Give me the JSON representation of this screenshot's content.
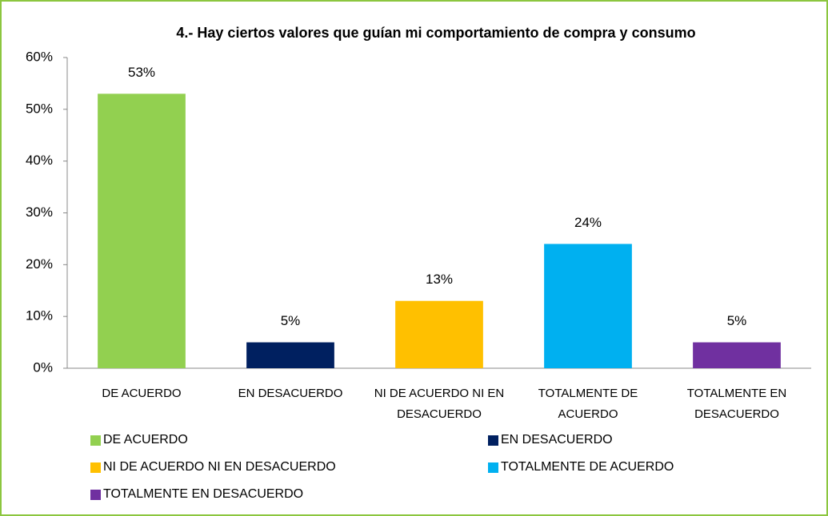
{
  "chart_data": {
    "type": "bar",
    "title": "4.- Hay ciertos valores que guían mi comportamiento de compra y consumo",
    "categories": [
      "DE ACUERDO",
      "EN DESACUERDO",
      "NI DE ACUERDO NI EN DESACUERDO",
      "TOTALMENTE DE ACUERDO",
      "TOTALMENTE EN DESACUERDO"
    ],
    "values": [
      53,
      5,
      13,
      24,
      5
    ],
    "value_labels": [
      "53%",
      "5%",
      "13%",
      "24%",
      "5%"
    ],
    "colors": [
      "#92d050",
      "#002060",
      "#ffc000",
      "#00b0f0",
      "#7030a0"
    ],
    "ylim": [
      0,
      60
    ],
    "yticks": [
      {
        "value": 0,
        "label": "0%"
      },
      {
        "value": 10,
        "label": "10%"
      },
      {
        "value": 20,
        "label": "20%"
      },
      {
        "value": 30,
        "label": "30%"
      },
      {
        "value": 40,
        "label": "40%"
      },
      {
        "value": 50,
        "label": "50%"
      },
      {
        "value": 60,
        "label": "60%"
      }
    ],
    "grid": false,
    "legend": "bottom"
  }
}
